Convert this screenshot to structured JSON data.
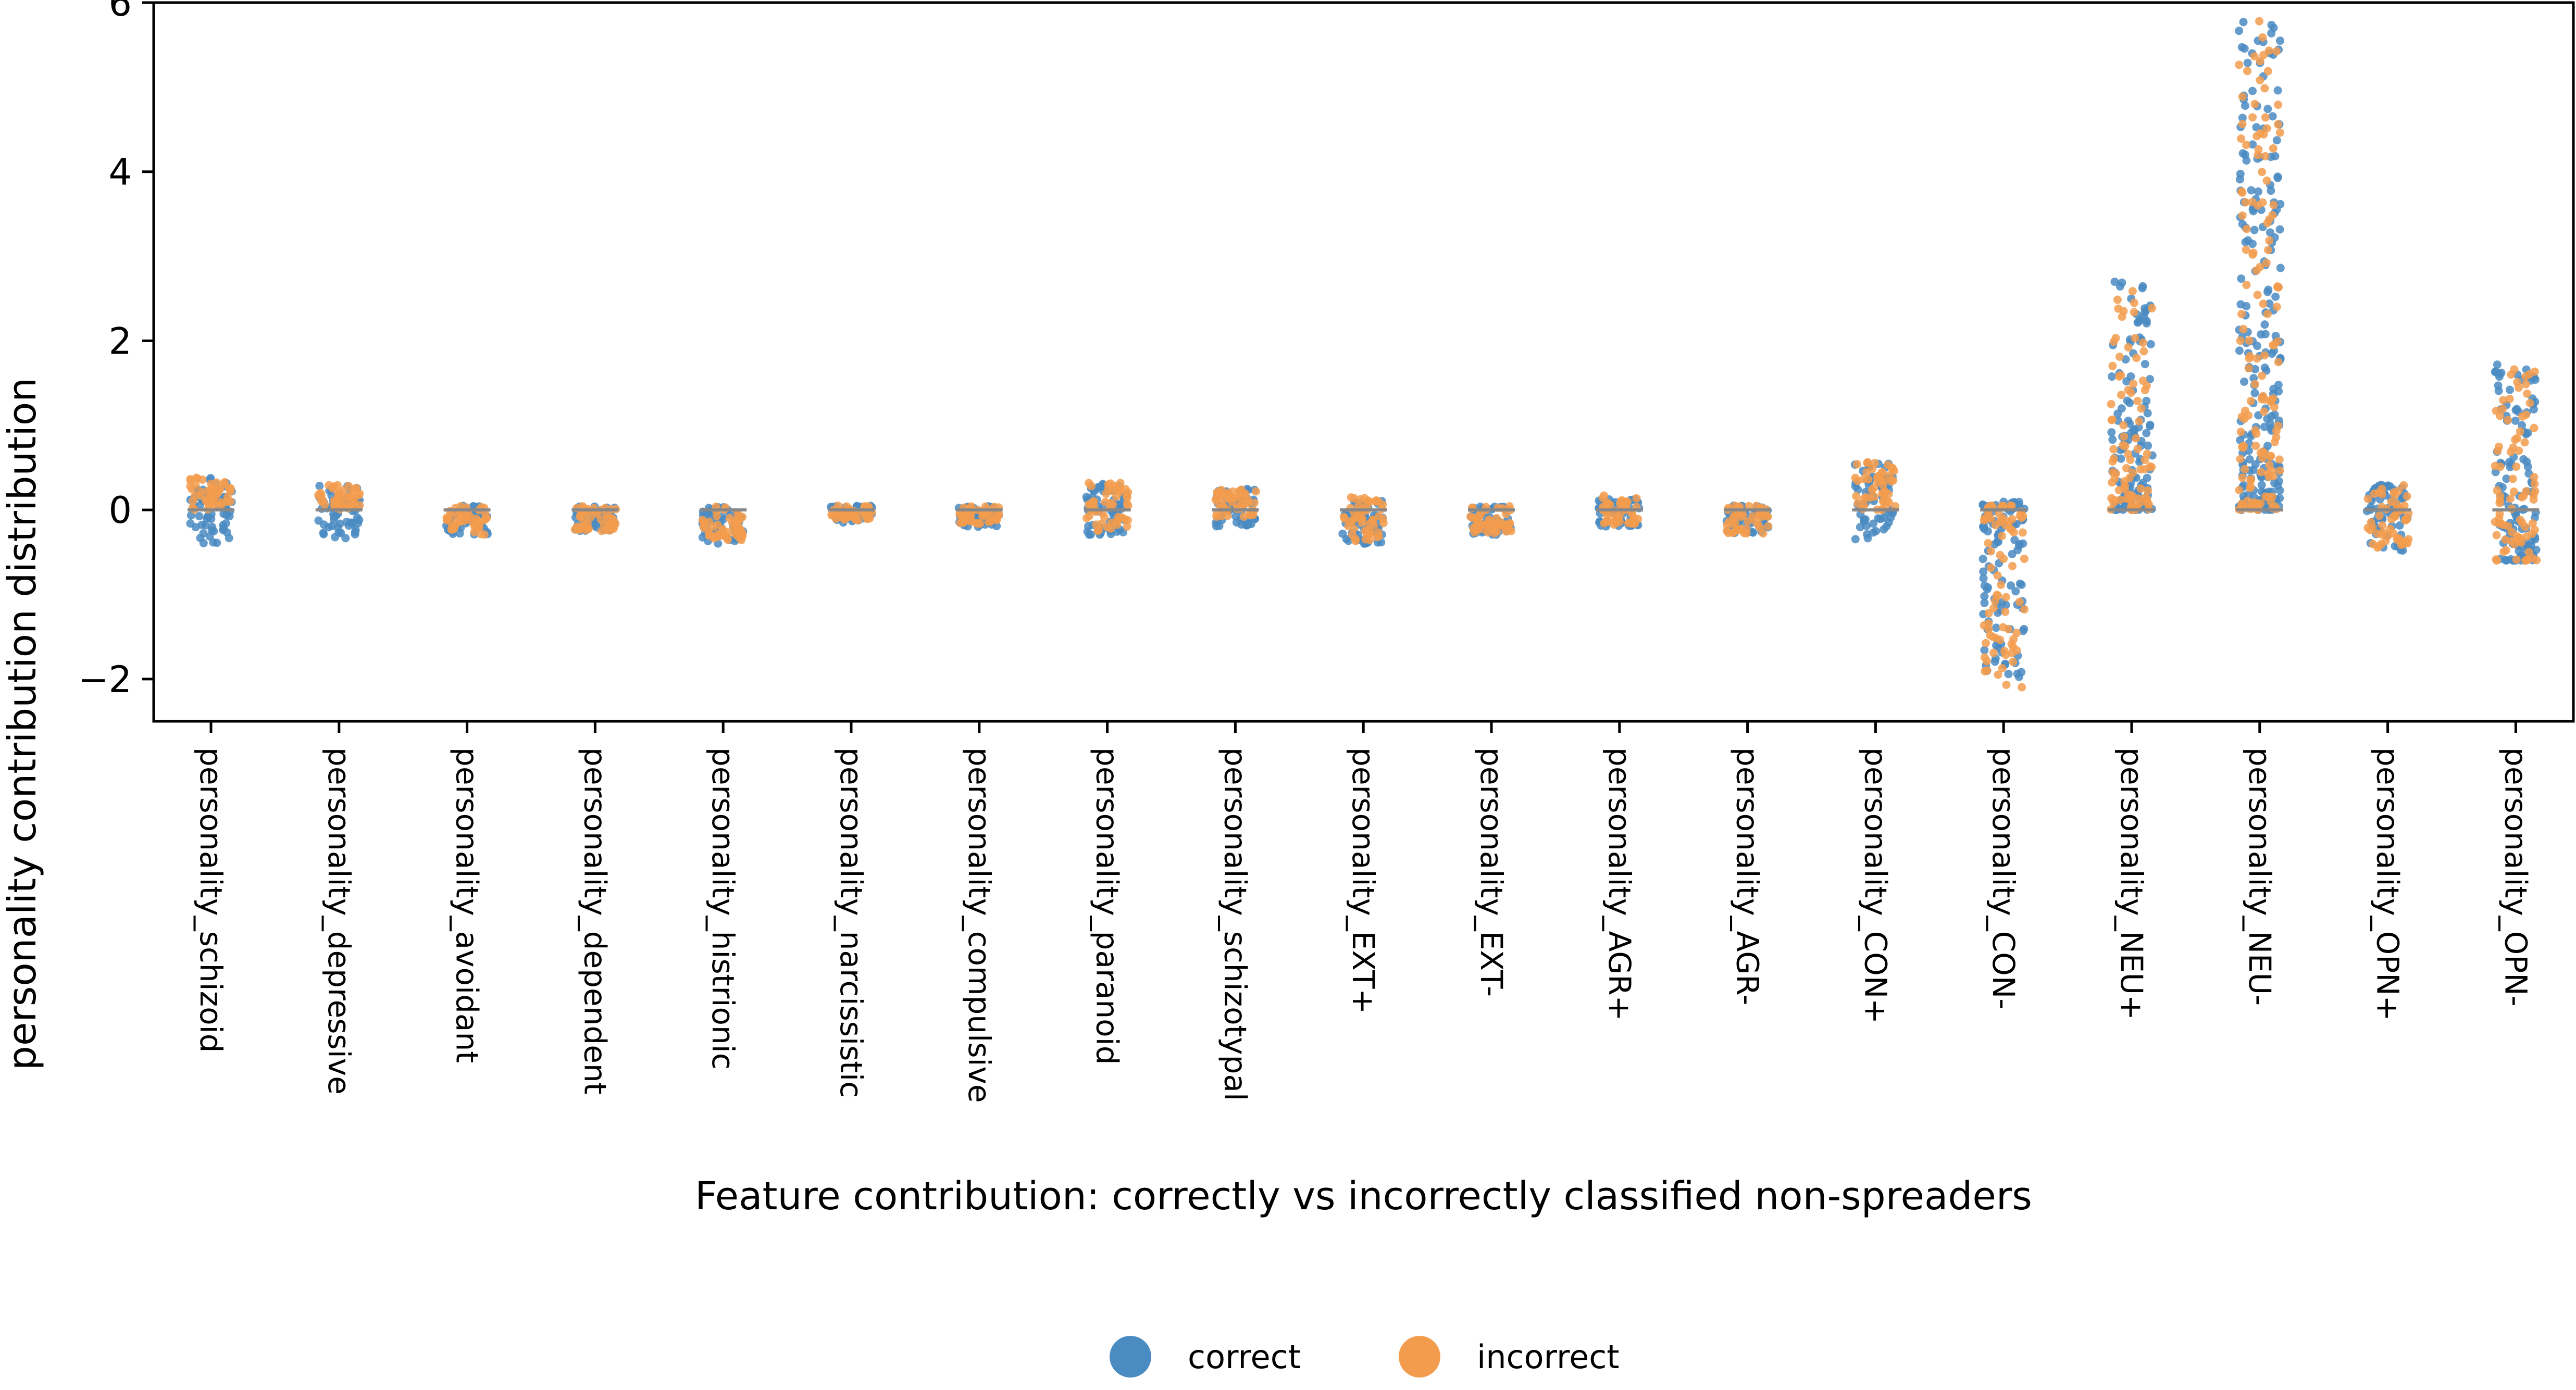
{
  "chart_data": {
    "type": "scatter",
    "subtype": "strip",
    "title": "",
    "xlabel": "Feature contribution: correctly vs incorrectly classified non-spreaders",
    "ylabel": "personality contribution distribution",
    "ylim": [
      -2.5,
      6.0
    ],
    "yticks": [
      -2,
      0,
      2,
      4,
      6
    ],
    "ytick_labels": [
      "−2",
      "0",
      "2",
      "4",
      "6"
    ],
    "grid": false,
    "legend_position": "bottom-center",
    "categories": [
      "personality_schizoid",
      "personality_depressive",
      "personality_avoidant",
      "personality_dependent",
      "personality_histrionic",
      "personality_narcissistic",
      "personality_compulsive",
      "personality_paranoid",
      "personality_schizotypal",
      "personality_EXT+",
      "personality_EXT-",
      "personality_AGR+",
      "personality_AGR-",
      "personality_CON+",
      "personality_CON-",
      "personality_NEU+",
      "personality_NEU-",
      "personality_OPN+",
      "personality_OPN-"
    ],
    "series": [
      {
        "name": "correct",
        "color": "#4a8bc2",
        "ranges": [
          [
            -0.4,
            0.38
          ],
          [
            -0.35,
            0.3
          ],
          [
            -0.3,
            0.05
          ],
          [
            -0.25,
            0.05
          ],
          [
            -0.4,
            0.05
          ],
          [
            -0.15,
            0.05
          ],
          [
            -0.2,
            0.05
          ],
          [
            -0.3,
            0.32
          ],
          [
            -0.2,
            0.25
          ],
          [
            -0.4,
            0.12
          ],
          [
            -0.3,
            0.05
          ],
          [
            -0.2,
            0.15
          ],
          [
            -0.3,
            0.05
          ],
          [
            -0.35,
            0.55
          ],
          [
            -2.05,
            0.1
          ],
          [
            0.0,
            2.75
          ],
          [
            0.0,
            5.9
          ],
          [
            -0.5,
            0.3
          ],
          [
            -0.6,
            1.75
          ]
        ]
      },
      {
        "name": "incorrect",
        "color": "#f39c4e",
        "ranges": [
          [
            0.0,
            0.38
          ],
          [
            0.0,
            0.3
          ],
          [
            -0.3,
            0.05
          ],
          [
            -0.25,
            0.05
          ],
          [
            -0.38,
            0.05
          ],
          [
            -0.12,
            0.05
          ],
          [
            -0.18,
            0.05
          ],
          [
            -0.25,
            0.32
          ],
          [
            -0.1,
            0.25
          ],
          [
            -0.38,
            0.15
          ],
          [
            -0.28,
            0.05
          ],
          [
            -0.18,
            0.18
          ],
          [
            -0.28,
            0.05
          ],
          [
            0.0,
            0.58
          ],
          [
            -2.1,
            0.05
          ],
          [
            0.0,
            2.6
          ],
          [
            0.0,
            5.8
          ],
          [
            -0.45,
            0.3
          ],
          [
            -0.6,
            1.75
          ]
        ]
      }
    ]
  }
}
